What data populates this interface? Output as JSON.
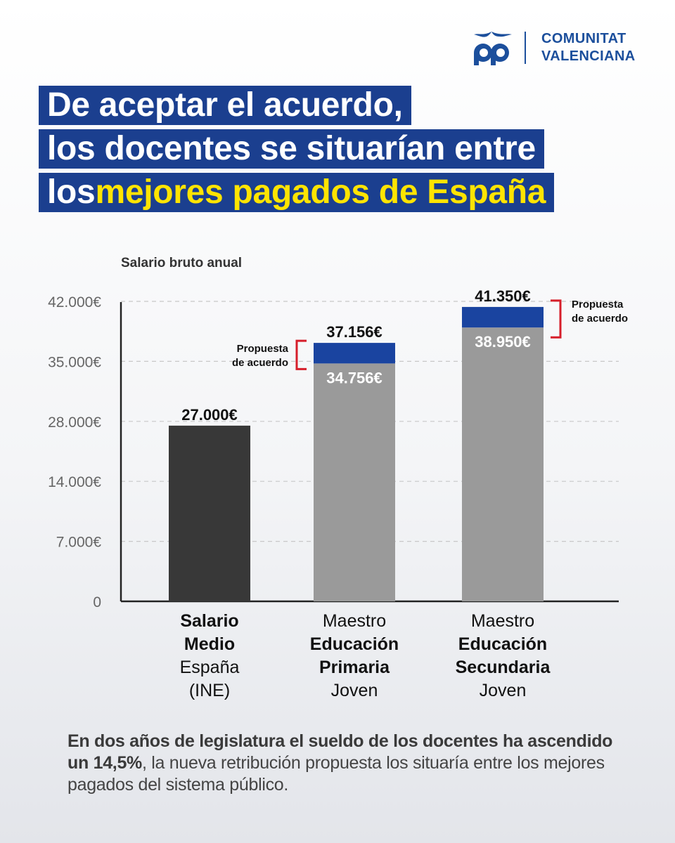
{
  "brand": {
    "line1": "COMUNITAT",
    "line2": "VALENCIANA",
    "color": "#1c4f9c"
  },
  "headline": {
    "line1": "De aceptar el acuerdo,",
    "line2": "los docentes se situarían entre",
    "line3_prefix": "los ",
    "line3_highlight": "mejores pagados de España",
    "box_color": "#1b3f8f",
    "highlight_color": "#ffe400"
  },
  "chart_data": {
    "type": "bar",
    "stacked": true,
    "ylabel": "Salario bruto anual",
    "yticks": [
      {
        "value": 0,
        "label": "0"
      },
      {
        "value": 7000,
        "label": "7.000€"
      },
      {
        "value": 14000,
        "label": "14.000€"
      },
      {
        "value": 28000,
        "label": "28.000€"
      },
      {
        "value": 35000,
        "label": "35.000€"
      },
      {
        "value": 42000,
        "label": "42.000€"
      }
    ],
    "grid": true,
    "categories": [
      {
        "lines": [
          {
            "text": "Salario",
            "bold": true
          },
          {
            "text": "Medio",
            "bold": true
          },
          {
            "text": "España",
            "bold": false
          },
          {
            "text": "(INE)",
            "bold": false
          }
        ]
      },
      {
        "lines": [
          {
            "text": "Maestro",
            "bold": false
          },
          {
            "text": "Educación",
            "bold": true
          },
          {
            "text": "Primaria",
            "bold": true
          },
          {
            "text": "Joven",
            "bold": false
          }
        ]
      },
      {
        "lines": [
          {
            "text": "Maestro",
            "bold": false
          },
          {
            "text": "Educación",
            "bold": true
          },
          {
            "text": "Secundaria",
            "bold": true
          },
          {
            "text": "Joven",
            "bold": false
          }
        ]
      }
    ],
    "bars": [
      {
        "base": 27000,
        "total": 27000,
        "base_color": "#383838",
        "top_label": "27.000€",
        "base_label": ""
      },
      {
        "base": 34756,
        "total": 37156,
        "base_color": "#9a9a9a",
        "top_color": "#1a44a0",
        "top_label": "37.156€",
        "base_label": "34.756€",
        "bracket_side": "left"
      },
      {
        "base": 38950,
        "total": 41350,
        "base_color": "#9a9a9a",
        "top_color": "#1a44a0",
        "top_label": "41.350€",
        "base_label": "38.950€",
        "bracket_side": "right"
      }
    ],
    "bracket_text": [
      "Propuesta",
      "de acuerdo"
    ],
    "bracket_color": "#d61e2a"
  },
  "footer": {
    "bold": "En dos años de legislatura el sueldo de los docentes ha ascendido un 14,5%",
    "regular": ", la nueva retribución propuesta los situaría entre los mejores pagados del sistema público."
  }
}
